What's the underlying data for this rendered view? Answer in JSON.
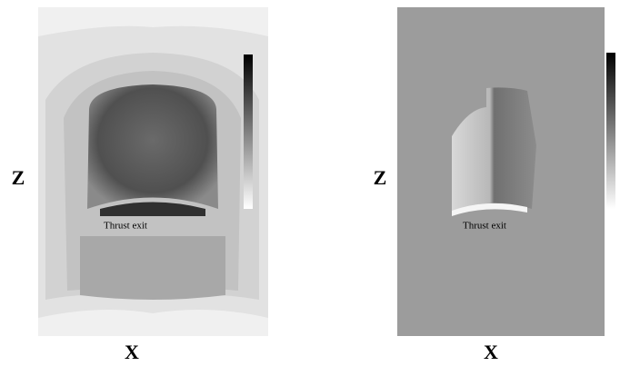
{
  "panels": [
    {
      "z_label": "Z",
      "x_label": "X",
      "annotation": "Thrust exit"
    },
    {
      "z_label": "Z",
      "x_label": "X",
      "annotation": "Thrust exit"
    }
  ]
}
